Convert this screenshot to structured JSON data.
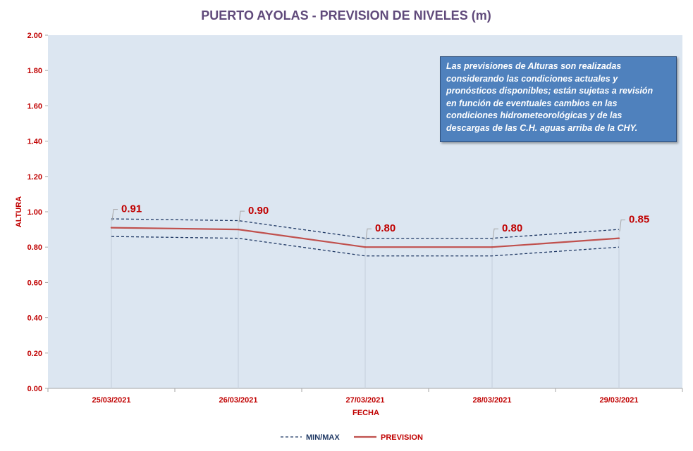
{
  "chart_data": {
    "type": "line",
    "title": "PUERTO AYOLAS - PREVISION DE NIVELES (m)",
    "xlabel": "FECHA",
    "ylabel": "ALTURA",
    "ylim": [
      0,
      2
    ],
    "yticks": [
      "0.00",
      "0.20",
      "0.40",
      "0.60",
      "0.80",
      "1.00",
      "1.20",
      "1.40",
      "1.60",
      "1.80",
      "2.00"
    ],
    "categories": [
      "25/03/2021",
      "26/03/2021",
      "27/03/2021",
      "28/03/2021",
      "29/03/2021"
    ],
    "series": [
      {
        "name": "PREVISION",
        "values": [
          0.91,
          0.9,
          0.8,
          0.8,
          0.85
        ],
        "style": "solid",
        "color": "#c0504d"
      },
      {
        "name": "MIN/MAX",
        "role": "max",
        "values": [
          0.96,
          0.95,
          0.85,
          0.85,
          0.9
        ],
        "style": "dashed",
        "color": "#1f3864"
      },
      {
        "name": "MIN/MAX",
        "role": "min",
        "values": [
          0.86,
          0.85,
          0.75,
          0.75,
          0.8
        ],
        "style": "dashed",
        "color": "#1f3864"
      }
    ],
    "data_labels": [
      "0.91",
      "0.90",
      "0.80",
      "0.80",
      "0.85"
    ],
    "legend": {
      "position": "bottom",
      "items": [
        "MIN/MAX",
        "PREVISION"
      ]
    },
    "annotation": "Las previsiones de Alturas son realizadas\nconsiderando las condiciones actuales y\npronósticos disponibles;  están sujetas a revisión\nen función de eventuales cambios en las\ncondiciones hidrometeorológicas y de las\ndescargas de las C.H. aguas arriba de la CHY.",
    "grid": false,
    "colors": {
      "plot_background": "#dce6f1",
      "title": "#604a7b",
      "axis_text": "#c00000",
      "annotation_background": "#4f81bd",
      "drop_lines": "#c9d3df"
    }
  }
}
